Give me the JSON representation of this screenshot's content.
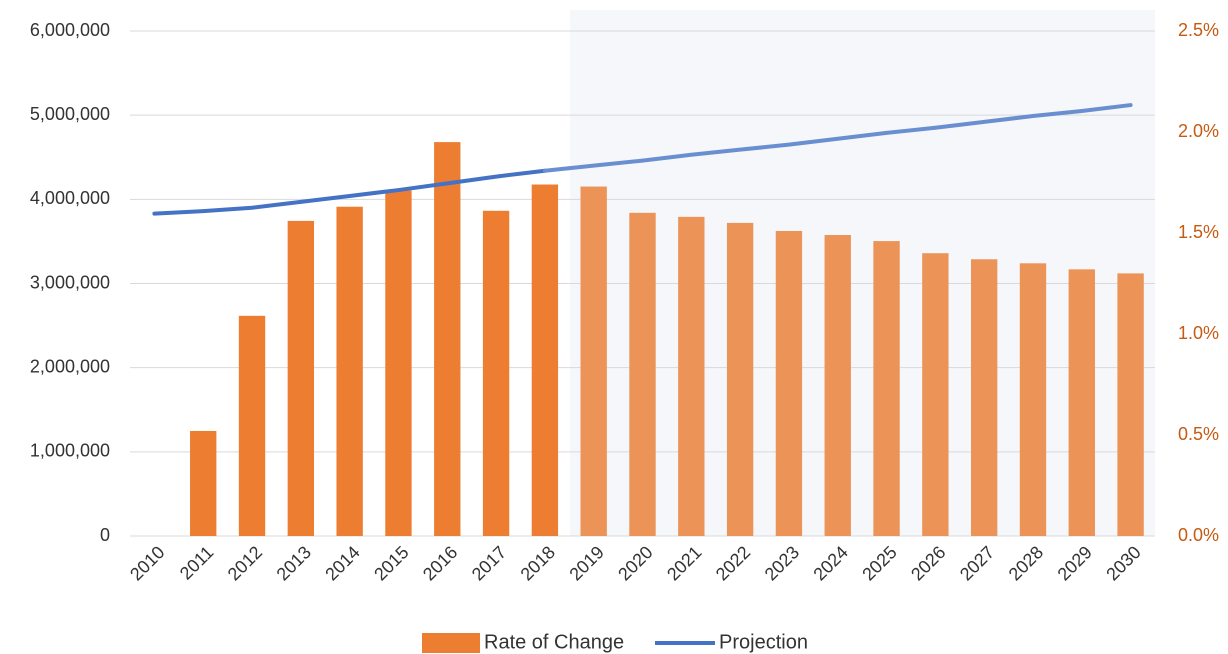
{
  "chart_data": {
    "type": "bar_line",
    "categories": [
      "2010",
      "2011",
      "2012",
      "2013",
      "2014",
      "2015",
      "2016",
      "2017",
      "2018",
      "2019",
      "2020",
      "2021",
      "2022",
      "2023",
      "2024",
      "2025",
      "2026",
      "2027",
      "2028",
      "2029",
      "2030"
    ],
    "series": [
      {
        "name": "Rate of Change",
        "type": "bar",
        "axis": "y2",
        "color": "#ed7d31",
        "colors": [
          "#ed7d31",
          "#ed7d31",
          "#ed7d31",
          "#ed7d31",
          "#ed7d31",
          "#ed7d31",
          "#ed7d31",
          "#ed7d31",
          "#ed7d31",
          "#ec9358",
          "#ec9358",
          "#ec9358",
          "#ec9358",
          "#ec9358",
          "#ec9358",
          "#ec9358",
          "#ec9358",
          "#ec9358",
          "#ec9358",
          "#ec9358",
          "#ec9358"
        ],
        "values": [
          null,
          0.52,
          1.09,
          1.56,
          1.63,
          1.71,
          1.95,
          1.61,
          1.74,
          1.73,
          1.6,
          1.58,
          1.55,
          1.51,
          1.49,
          1.46,
          1.4,
          1.37,
          1.35,
          1.32,
          1.3
        ]
      },
      {
        "name": "Projection",
        "type": "line",
        "axis": "y",
        "color": "#4472c4",
        "colors": [
          "#4472c4",
          "#4472c4",
          "#4472c4",
          "#4472c4",
          "#4472c4",
          "#4472c4",
          "#4472c4",
          "#4472c4",
          "#4472c4",
          "#6a8fd0",
          "#6a8fd0",
          "#6a8fd0",
          "#6a8fd0",
          "#6a8fd0",
          "#6a8fd0",
          "#6a8fd0",
          "#6a8fd0",
          "#6a8fd0",
          "#6a8fd0",
          "#6a8fd0",
          "#6a8fd0"
        ],
        "values": [
          3830000,
          3860000,
          3900000,
          3970000,
          4040000,
          4110000,
          4190000,
          4270000,
          4340000,
          4400000,
          4460000,
          4530000,
          4590000,
          4650000,
          4720000,
          4790000,
          4850000,
          4920000,
          4990000,
          5050000,
          5120000
        ]
      }
    ],
    "ylim": [
      0,
      6000000
    ],
    "yticks": [
      0,
      {
        "value": 1000000,
        "label": "1,000,000"
      },
      {
        "value": 2000000,
        "label": "2,000,000"
      },
      {
        "value": 3000000,
        "label": "3,000,000"
      },
      {
        "value": 4000000,
        "label": "4,000,000"
      },
      {
        "value": 5000000,
        "label": "5,000,000"
      },
      {
        "value": 6000000,
        "label": "6,000,000"
      }
    ],
    "y2lim": [
      0,
      2.5
    ],
    "y2ticks": [
      {
        "value": 0,
        "label": "0.0%"
      },
      {
        "value": 0.5,
        "label": "0.5%"
      },
      {
        "value": 1,
        "label": "1.0%"
      },
      {
        "value": 1.5,
        "label": "1.5%"
      },
      {
        "value": 2,
        "label": "2.0%"
      },
      {
        "value": 2.5,
        "label": "2.5%"
      }
    ],
    "grid": true,
    "legend": "bottom"
  }
}
